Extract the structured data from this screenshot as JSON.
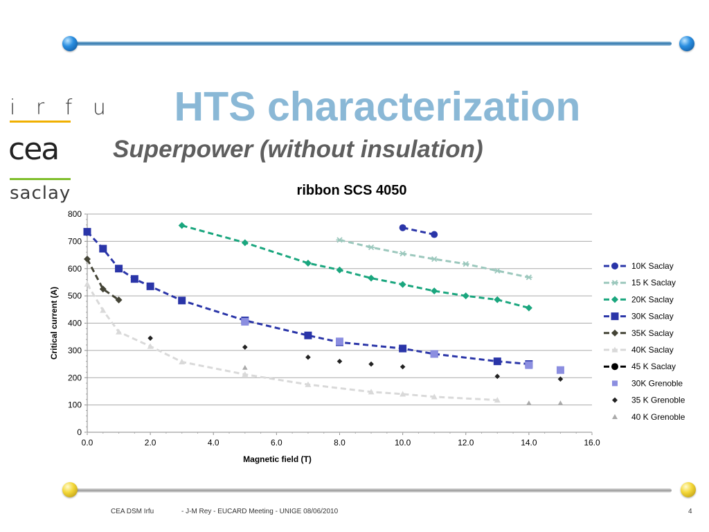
{
  "slide": {
    "title": "HTS characterization",
    "subtitle": "Superpower (without insulation)",
    "logos": {
      "irfu": "i r f u",
      "cea": "cea",
      "saclay": "saclay"
    },
    "footer": {
      "left": "CEA DSM Irfu",
      "center": "- J-M Rey - EUCARD Meeting  - UNIGE 08/06/2010",
      "page": "4"
    }
  },
  "chart_data": {
    "type": "scatter",
    "title": "ribbon SCS 4050",
    "xlabel": "Magnetic field (T)",
    "ylabel": "Critical current (A)",
    "xlim": [
      0,
      16
    ],
    "ylim": [
      0,
      800
    ],
    "xticks": [
      "0.0",
      "2.0",
      "4.0",
      "6.0",
      "8.0",
      "10.0",
      "12.0",
      "14.0",
      "16.0"
    ],
    "yticks": [
      "0",
      "100",
      "200",
      "300",
      "400",
      "500",
      "600",
      "700",
      "800"
    ],
    "grid": "horizontal",
    "legend_position": "right",
    "series": [
      {
        "name": "10K Saclay",
        "color": "#2a35a8",
        "marker": "circle",
        "line": true,
        "points": [
          [
            10,
            750
          ],
          [
            11,
            725
          ]
        ]
      },
      {
        "name": "15 K Saclay",
        "color": "#9cc8bd",
        "marker": "star",
        "line": true,
        "points": [
          [
            8,
            705
          ],
          [
            9,
            678
          ],
          [
            10,
            655
          ],
          [
            11,
            635
          ],
          [
            12,
            617
          ],
          [
            13,
            592
          ],
          [
            14,
            568
          ]
        ]
      },
      {
        "name": "20K Saclay",
        "color": "#1aa67e",
        "marker": "diamond",
        "line": true,
        "points": [
          [
            3,
            758
          ],
          [
            5,
            695
          ],
          [
            7,
            620
          ],
          [
            8,
            595
          ],
          [
            9,
            565
          ],
          [
            10,
            542
          ],
          [
            11,
            518
          ],
          [
            12,
            500
          ],
          [
            13,
            486
          ],
          [
            14,
            456
          ]
        ]
      },
      {
        "name": "30K Saclay",
        "color": "#2a35a8",
        "marker": "square",
        "line": true,
        "points": [
          [
            0,
            735
          ],
          [
            0.5,
            673
          ],
          [
            1,
            600
          ],
          [
            1.5,
            562
          ],
          [
            2,
            535
          ],
          [
            3,
            483
          ],
          [
            5,
            410
          ],
          [
            7,
            355
          ],
          [
            8,
            330
          ],
          [
            10,
            307
          ],
          [
            11,
            287
          ],
          [
            13,
            260
          ],
          [
            14,
            250
          ]
        ]
      },
      {
        "name": "35K Saclay",
        "color": "#444436",
        "marker": "diamond",
        "line": true,
        "points": [
          [
            0,
            635
          ],
          [
            0.5,
            525
          ],
          [
            1,
            485
          ]
        ]
      },
      {
        "name": "40K Saclay",
        "color": "#d9d9d9",
        "marker": "triangle",
        "line": true,
        "points": [
          [
            0,
            543
          ],
          [
            0.5,
            447
          ],
          [
            1,
            368
          ],
          [
            2,
            315
          ],
          [
            3,
            258
          ],
          [
            5,
            212
          ],
          [
            7,
            175
          ],
          [
            9,
            148
          ],
          [
            10,
            140
          ],
          [
            11,
            130
          ],
          [
            13,
            118
          ]
        ]
      },
      {
        "name": "45 K Saclay",
        "color": "#000000",
        "marker": "circle",
        "line": true,
        "points": []
      },
      {
        "name": "30K Grenoble",
        "color": "#8b8ee0",
        "marker": "square",
        "line": false,
        "points": [
          [
            5,
            405
          ],
          [
            8,
            333
          ],
          [
            11,
            287
          ],
          [
            14,
            246
          ],
          [
            15,
            228
          ]
        ]
      },
      {
        "name": "35 K Grenoble",
        "color": "#222222",
        "marker": "diamond",
        "line": false,
        "points": [
          [
            2,
            345
          ],
          [
            5,
            312
          ],
          [
            7,
            275
          ],
          [
            8,
            260
          ],
          [
            9,
            250
          ],
          [
            10,
            240
          ],
          [
            13,
            205
          ],
          [
            15,
            195
          ]
        ]
      },
      {
        "name": "40 K Grenoble",
        "color": "#aaaaaa",
        "marker": "triangle",
        "line": false,
        "points": [
          [
            5,
            237
          ],
          [
            14,
            107
          ],
          [
            15,
            107
          ]
        ]
      }
    ]
  }
}
